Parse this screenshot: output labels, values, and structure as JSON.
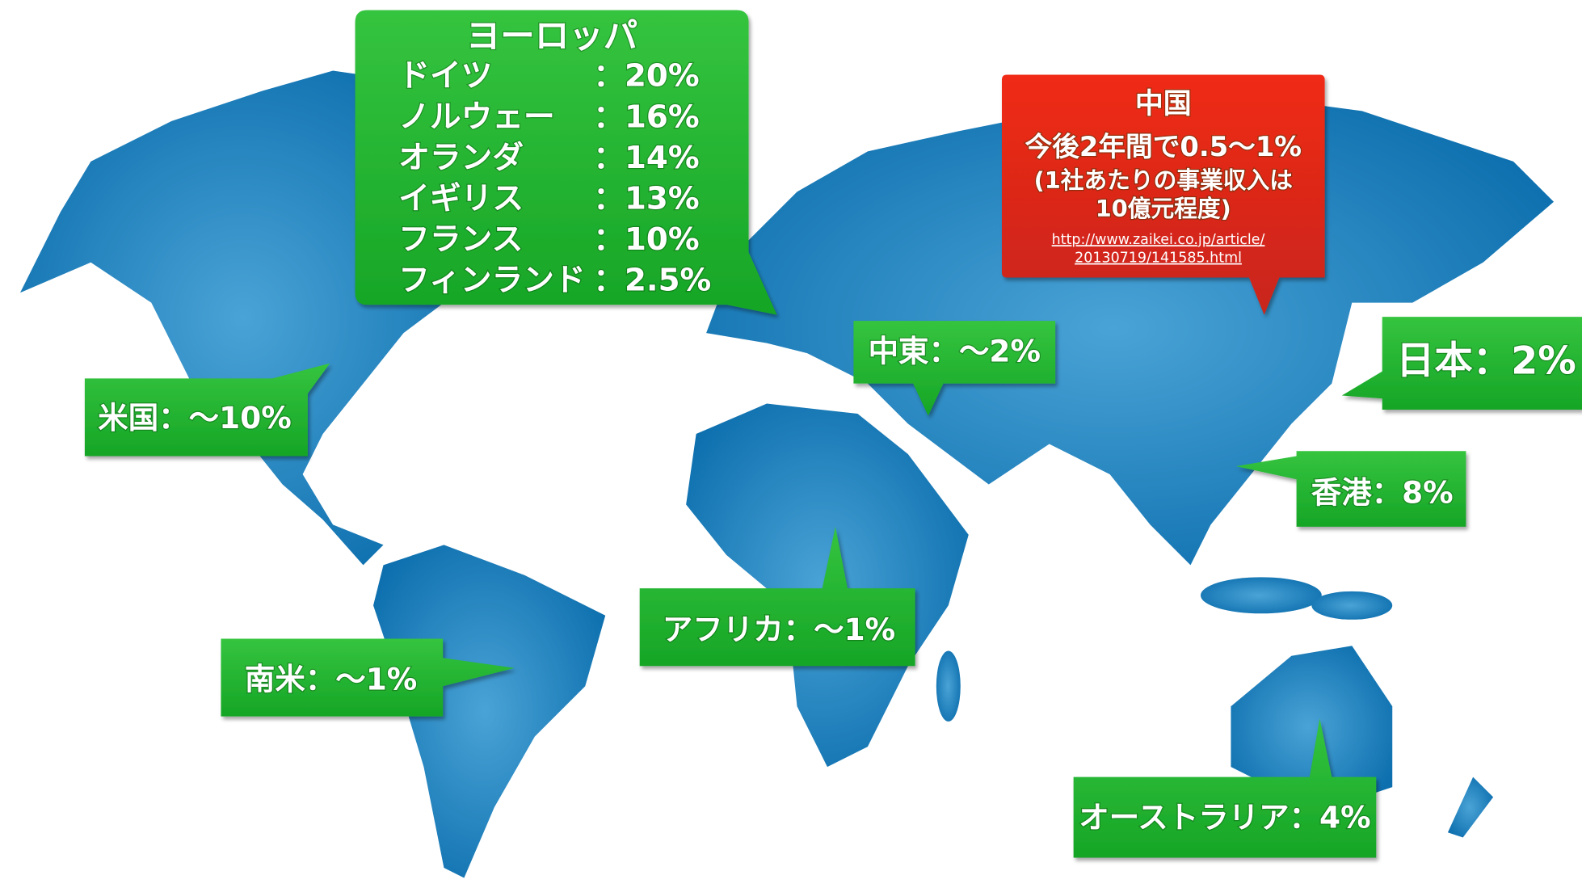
{
  "europe": {
    "title": "ヨーロッパ",
    "rows": [
      {
        "name": "ドイツ",
        "value": "：20%"
      },
      {
        "name": "ノルウェー",
        "value": "：16%"
      },
      {
        "name": "オランダ",
        "value": "：14%"
      },
      {
        "name": "イギリス",
        "value": "：13%"
      },
      {
        "name": "フランス",
        "value": "：10%"
      },
      {
        "name": "フィンランド",
        "value": "：2.5%"
      }
    ]
  },
  "china": {
    "title": "中国",
    "lines": [
      "今後2年間で0.5〜1%",
      "(1社あたりの事業収入は",
      "10億元程度)"
    ],
    "link": [
      "http://www.zaikei.co.jp/article/",
      "20130719/141585.html"
    ]
  },
  "callouts": {
    "middle_east": "中東：〜2%",
    "japan": "日本：2%",
    "usa": "米国：〜10%",
    "hong_kong": "香港：8%",
    "africa": "アフリカ：〜1%",
    "south_america": "南米：〜1%",
    "australia": "オーストラリア：4%"
  }
}
